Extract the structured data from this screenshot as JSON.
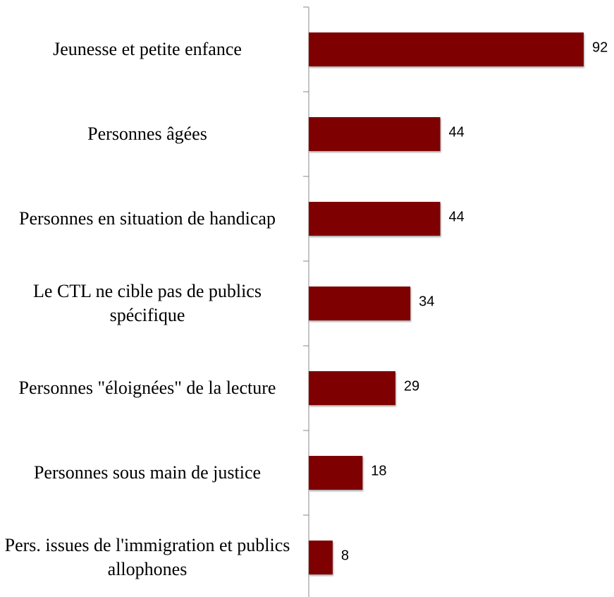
{
  "chart_data": {
    "type": "bar",
    "orientation": "horizontal",
    "categories": [
      "Jeunesse et petite enfance",
      "Personnes âgées",
      "Personnes en situation de handicap",
      "Le CTL ne cible pas de publics spécifique",
      "Personnes \"éloignées\" de la lecture",
      "Personnes sous main de justice",
      "Pers. issues de l'immigration et publics allophones"
    ],
    "values": [
      92,
      44,
      44,
      34,
      29,
      18,
      8
    ],
    "color": "#7f0000"
  }
}
